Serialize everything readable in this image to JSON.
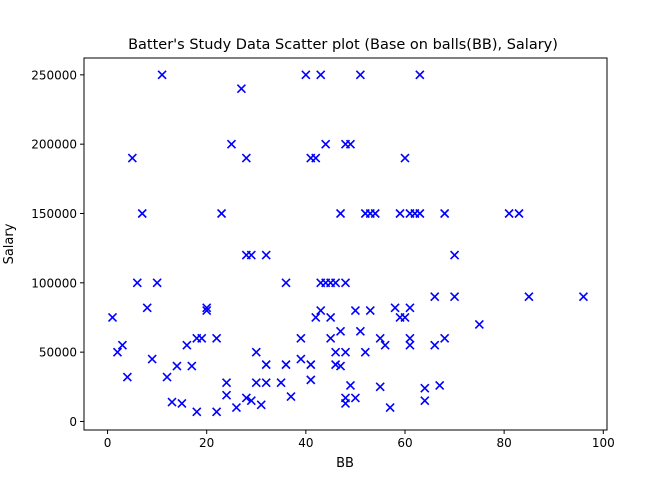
{
  "chart_data": {
    "type": "scatter",
    "title": "Batter's Study Data Scatter plot (Base on balls(BB), Salary)",
    "xlabel": "BB",
    "ylabel": "Salary",
    "xlim": [
      -4.75,
      100.75
    ],
    "ylim": [
      -6150,
      262150
    ],
    "xticks": [
      0,
      20,
      40,
      60,
      80,
      100
    ],
    "yticks": [
      0,
      50000,
      100000,
      150000,
      200000,
      250000
    ],
    "marker": "x",
    "color": "#0000ff",
    "grid": false,
    "x": [
      1,
      2,
      3,
      4,
      5,
      6,
      7,
      8,
      9,
      10,
      11,
      12,
      13,
      14,
      15,
      16,
      17,
      18,
      18,
      19,
      20,
      20,
      22,
      22,
      23,
      24,
      24,
      25,
      26,
      27,
      28,
      28,
      28,
      29,
      29,
      30,
      30,
      31,
      32,
      32,
      32,
      35,
      36,
      36,
      37,
      39,
      39,
      40,
      41,
      41,
      41,
      42,
      42,
      43,
      43,
      43,
      44,
      44,
      45,
      45,
      45,
      46,
      46,
      46,
      47,
      47,
      47,
      48,
      48,
      48,
      48,
      48,
      49,
      49,
      50,
      50,
      51,
      51,
      52,
      52,
      53,
      53,
      54,
      55,
      55,
      56,
      57,
      58,
      59,
      59,
      60,
      60,
      61,
      61,
      61,
      61,
      62,
      63,
      63,
      64,
      64,
      66,
      66,
      67,
      68,
      68,
      70,
      70,
      75,
      81,
      83,
      85,
      96
    ],
    "y": [
      75000,
      50000,
      55000,
      32000,
      190000,
      100000,
      150000,
      82000,
      45000,
      100000,
      250000,
      32000,
      14000,
      40000,
      13000,
      55000,
      40000,
      7000,
      60000,
      60000,
      82000,
      80000,
      60000,
      7000,
      150000,
      28000,
      19000,
      200000,
      10000,
      240000,
      190000,
      120000,
      17000,
      120000,
      15000,
      50000,
      28000,
      12000,
      120000,
      41000,
      28000,
      28000,
      100000,
      41000,
      18000,
      60000,
      45000,
      250000,
      190000,
      41000,
      30000,
      190000,
      75000,
      100000,
      80000,
      250000,
      200000,
      100000,
      75000,
      100000,
      60000,
      100000,
      41000,
      50000,
      150000,
      65000,
      40000,
      200000,
      100000,
      50000,
      17000,
      13000,
      200000,
      26000,
      80000,
      17000,
      250000,
      65000,
      150000,
      50000,
      150000,
      80000,
      150000,
      60000,
      25000,
      55000,
      10000,
      82000,
      150000,
      75000,
      190000,
      75000,
      150000,
      82000,
      60000,
      55000,
      150000,
      250000,
      150000,
      24000,
      15000,
      90000,
      55000,
      26000,
      150000,
      60000,
      120000,
      90000,
      70000,
      150000,
      150000,
      90000,
      90000
    ]
  }
}
